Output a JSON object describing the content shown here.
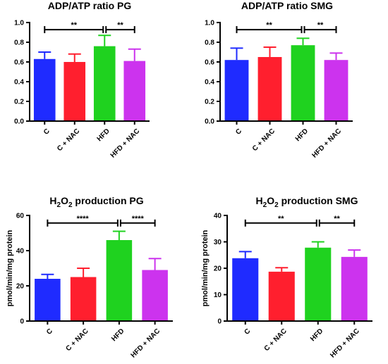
{
  "colors": {
    "C": "#1f2bff",
    "C + NAC": "#ff1f2e",
    "HFD": "#1fd21f",
    "HFD + NAC": "#cc33ee",
    "axis": "#000000"
  },
  "chart_data": [
    {
      "type": "bar",
      "title": "ADP/ATP ratio PG",
      "title_main": "ADP/ATP ratio PG",
      "title_sub": "",
      "title_tail": "",
      "ylabel": "",
      "ylim": [
        0,
        1.0
      ],
      "yticks": [
        "0.0",
        "0.2",
        "0.4",
        "0.6",
        "0.8",
        "1.0"
      ],
      "categories": [
        "C",
        "C + NAC",
        "HFD",
        "HFD + NAC"
      ],
      "values": [
        0.63,
        0.6,
        0.76,
        0.61
      ],
      "errors": [
        0.07,
        0.08,
        0.11,
        0.12
      ],
      "significance": [
        {
          "from": 0,
          "to": 2,
          "label": "**"
        },
        {
          "from": 2,
          "to": 3,
          "label": "**"
        }
      ]
    },
    {
      "type": "bar",
      "title": "ADP/ATP ratio SMG",
      "title_main": "ADP/ATP ratio SMG",
      "title_sub": "",
      "title_tail": "",
      "ylabel": "",
      "ylim": [
        0,
        1.0
      ],
      "yticks": [
        "0.0",
        "0.2",
        "0.4",
        "0.6",
        "0.8",
        "1.0"
      ],
      "categories": [
        "C",
        "C + NAC",
        "HFD",
        "HFD + NAC"
      ],
      "values": [
        0.62,
        0.65,
        0.77,
        0.62
      ],
      "errors": [
        0.12,
        0.1,
        0.07,
        0.07
      ],
      "significance": [
        {
          "from": 0,
          "to": 2,
          "label": "**"
        },
        {
          "from": 2,
          "to": 3,
          "label": "**"
        }
      ]
    },
    {
      "type": "bar",
      "title": "H2O2 production PG",
      "title_main": "H",
      "title_sub": "2",
      "title_mid": "O",
      "title_sub2": "2",
      "title_tail": " production PG",
      "ylabel": "pmol/min/mg protein",
      "ylim": [
        0,
        60
      ],
      "yticks": [
        "0",
        "20",
        "40",
        "60"
      ],
      "categories": [
        "C",
        "C + NAC",
        "HFD",
        "HFD + NAC"
      ],
      "values": [
        24,
        25,
        46,
        29
      ],
      "errors": [
        2.5,
        5,
        5,
        6.5
      ],
      "significance": [
        {
          "from": 0,
          "to": 2,
          "label": "****"
        },
        {
          "from": 2,
          "to": 3,
          "label": "****"
        }
      ]
    },
    {
      "type": "bar",
      "title": "H2O2 production SMG",
      "title_main": "H",
      "title_sub": "2",
      "title_mid": "O",
      "title_sub2": "2",
      "title_tail": " production SMG",
      "ylabel": "pmol/min/mg protein",
      "ylim": [
        0,
        40
      ],
      "yticks": [
        "0",
        "10",
        "20",
        "30",
        "40"
      ],
      "categories": [
        "C",
        "C + NAC",
        "HFD",
        "HFD + NAC"
      ],
      "values": [
        23.8,
        18.7,
        27.8,
        24.3
      ],
      "errors": [
        2.5,
        1.5,
        2.2,
        2.6
      ],
      "significance": [
        {
          "from": 0,
          "to": 2,
          "label": "**"
        },
        {
          "from": 2,
          "to": 3,
          "label": "**"
        }
      ]
    }
  ]
}
